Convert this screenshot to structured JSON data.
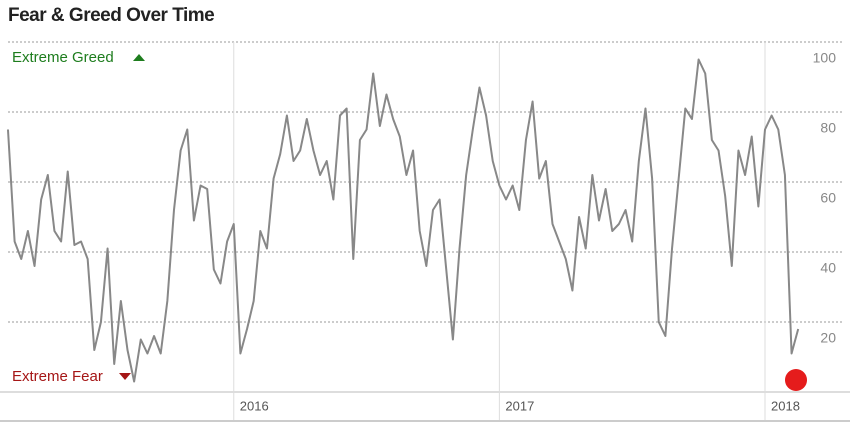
{
  "chart_data": {
    "type": "line",
    "title": "Fear & Greed Over Time",
    "annotations": [
      "Extreme Greed",
      "Extreme Fear"
    ],
    "color": "#888888",
    "x": [
      2015.15,
      2015.175,
      2015.2,
      2015.225,
      2015.25,
      2015.275,
      2015.3,
      2015.325,
      2015.35,
      2015.375,
      2015.4,
      2015.425,
      2015.45,
      2015.475,
      2015.5,
      2015.525,
      2015.55,
      2015.575,
      2015.6,
      2015.625,
      2015.65,
      2015.675,
      2015.7,
      2015.725,
      2015.75,
      2015.775,
      2015.8,
      2015.825,
      2015.85,
      2015.875,
      2015.9,
      2015.925,
      2015.95,
      2015.975,
      2016,
      2016.025,
      2016.05,
      2016.075,
      2016.1,
      2016.125,
      2016.15,
      2016.175,
      2016.2,
      2016.225,
      2016.25,
      2016.275,
      2016.3,
      2016.325,
      2016.35,
      2016.375,
      2016.4,
      2016.425,
      2016.45,
      2016.475,
      2016.5,
      2016.525,
      2016.55,
      2016.575,
      2016.6,
      2016.625,
      2016.65,
      2016.675,
      2016.7,
      2016.725,
      2016.75,
      2016.775,
      2016.8,
      2016.825,
      2016.85,
      2016.875,
      2016.9,
      2016.925,
      2016.95,
      2016.975,
      2017,
      2017.025,
      2017.05,
      2017.075,
      2017.1,
      2017.125,
      2017.15,
      2017.175,
      2017.2,
      2017.225,
      2017.25,
      2017.275,
      2017.3,
      2017.325,
      2017.35,
      2017.375,
      2017.4,
      2017.425,
      2017.45,
      2017.475,
      2017.5,
      2017.525,
      2017.55,
      2017.575,
      2017.6,
      2017.625,
      2017.65,
      2017.675,
      2017.7,
      2017.725,
      2017.75,
      2017.775,
      2017.8,
      2017.825,
      2017.85,
      2017.875,
      2017.9,
      2017.925,
      2017.95,
      2017.975,
      2018,
      2018.025,
      2018.05,
      2018.075,
      2018.1,
      2018.125
    ],
    "values": [
      75,
      43,
      38,
      46,
      36,
      55,
      62,
      46,
      43,
      63,
      42,
      43,
      38,
      12,
      20,
      41,
      8,
      26,
      12,
      3,
      15,
      11,
      16,
      11,
      26,
      52,
      69,
      75,
      49,
      59,
      58,
      35,
      31,
      43,
      48,
      11,
      18,
      26,
      46,
      41,
      61,
      68,
      79,
      66,
      69,
      78,
      69,
      62,
      66,
      55,
      79,
      81,
      38,
      72,
      75,
      91,
      76,
      85,
      78,
      73,
      62,
      69,
      46,
      36,
      52,
      55,
      35,
      15,
      41,
      62,
      75,
      87,
      79,
      66,
      59,
      55,
      59,
      52,
      72,
      83,
      61,
      66,
      48,
      43,
      38,
      29,
      50,
      41,
      62,
      49,
      58,
      46,
      48,
      52,
      43,
      66,
      81,
      61,
      20,
      16,
      41,
      61,
      81,
      78,
      95,
      91,
      72,
      69,
      56,
      36,
      69,
      62,
      73,
      53,
      75,
      79,
      75,
      62,
      11,
      18
    ],
    "xlim": [
      2015.12,
      2018.32
    ],
    "xticks": [
      2016,
      2017,
      2018
    ],
    "ylim": [
      0,
      100
    ],
    "yticks": [
      20,
      40,
      60,
      80,
      100
    ],
    "grid": true
  }
}
